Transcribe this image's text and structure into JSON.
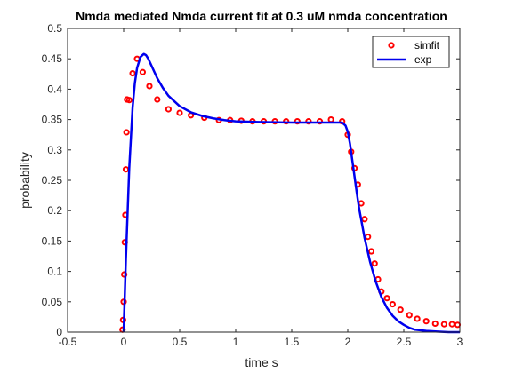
{
  "chart_data": {
    "type": "line",
    "title": "Nmda mediated Nmda current fit at 0.3 uM nmda concentration",
    "xlabel": "time s",
    "ylabel": "probability",
    "xlim": [
      -0.5,
      3
    ],
    "ylim": [
      0,
      0.5
    ],
    "xticks": [
      "-0.5",
      "0",
      "0.5",
      "1",
      "1.5",
      "2",
      "2.5",
      "3"
    ],
    "yticks": [
      "0",
      "0.05",
      "0.1",
      "0.15",
      "0.2",
      "0.25",
      "0.3",
      "0.35",
      "0.4",
      "0.45",
      "0.5"
    ],
    "grid": false,
    "legend_position": "top-right",
    "series": [
      {
        "name": "simfit",
        "style": "markers",
        "color": "#ff0000",
        "x": [
          -0.01,
          -0.005,
          0.0,
          0.005,
          0.01,
          0.015,
          0.02,
          0.025,
          0.03,
          0.05,
          0.08,
          0.12,
          0.17,
          0.23,
          0.3,
          0.4,
          0.5,
          0.6,
          0.72,
          0.85,
          0.95,
          1.05,
          1.15,
          1.25,
          1.35,
          1.45,
          1.55,
          1.65,
          1.75,
          1.85,
          1.95,
          2.0,
          2.03,
          2.06,
          2.09,
          2.12,
          2.15,
          2.18,
          2.21,
          2.24,
          2.27,
          2.3,
          2.35,
          2.4,
          2.47,
          2.55,
          2.62,
          2.7,
          2.78,
          2.86,
          2.93,
          2.98
        ],
        "y": [
          0.004,
          0.02,
          0.05,
          0.095,
          0.148,
          0.193,
          0.268,
          0.329,
          0.383,
          0.382,
          0.426,
          0.45,
          0.428,
          0.405,
          0.383,
          0.367,
          0.361,
          0.357,
          0.353,
          0.349,
          0.349,
          0.348,
          0.347,
          0.347,
          0.347,
          0.347,
          0.347,
          0.347,
          0.347,
          0.35,
          0.347,
          0.325,
          0.297,
          0.27,
          0.243,
          0.212,
          0.186,
          0.157,
          0.133,
          0.113,
          0.087,
          0.067,
          0.056,
          0.046,
          0.037,
          0.028,
          0.022,
          0.018,
          0.014,
          0.013,
          0.013,
          0.012
        ]
      },
      {
        "name": "exp",
        "style": "line",
        "color": "#0000ee",
        "x": [
          0.0,
          0.02,
          0.05,
          0.08,
          0.1,
          0.12,
          0.15,
          0.18,
          0.2,
          0.22,
          0.25,
          0.3,
          0.35,
          0.4,
          0.5,
          0.6,
          0.7,
          0.8,
          0.9,
          1.0,
          1.2,
          1.5,
          1.8,
          1.95,
          1.98,
          2.0,
          2.02,
          2.05,
          2.08,
          2.1,
          2.15,
          2.2,
          2.25,
          2.3,
          2.35,
          2.4,
          2.45,
          2.5,
          2.55,
          2.6,
          2.7,
          2.8,
          2.9,
          3.0
        ],
        "y": [
          0.0,
          0.12,
          0.27,
          0.37,
          0.41,
          0.435,
          0.453,
          0.458,
          0.456,
          0.45,
          0.438,
          0.418,
          0.402,
          0.389,
          0.372,
          0.362,
          0.356,
          0.352,
          0.349,
          0.347,
          0.346,
          0.345,
          0.345,
          0.345,
          0.34,
          0.33,
          0.31,
          0.27,
          0.23,
          0.205,
          0.155,
          0.115,
          0.083,
          0.058,
          0.04,
          0.027,
          0.018,
          0.012,
          0.007,
          0.004,
          0.002,
          0.001,
          0.0,
          0.0
        ]
      }
    ]
  }
}
